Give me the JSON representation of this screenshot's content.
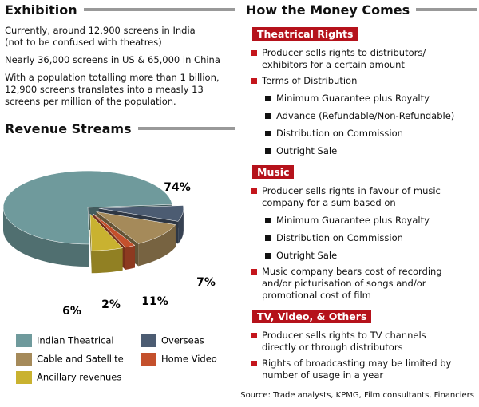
{
  "exhibition": {
    "title": "Exhibition",
    "paragraphs": [
      [
        "Currently, around 12,900 screens in India",
        "(not to be confused with theatres)"
      ],
      [
        "Nearly 36,000 screens in US & 65,000 in China"
      ],
      [
        "With a population totalling more than 1 billion,",
        "12,900 screens translates into a measly 13",
        "screens per million of the population."
      ]
    ]
  },
  "chart_data": {
    "type": "pie",
    "title": "Revenue Streams",
    "categories": [
      "Indian Theatrical",
      "Overseas",
      "Cable and Satellite",
      "Home Video",
      "Ancillary revenues"
    ],
    "values": [
      74,
      7,
      11,
      2,
      6
    ],
    "value_labels": [
      "74%",
      "7%",
      "11%",
      "2%",
      "6%"
    ],
    "colors": [
      "#6f9a9c",
      "#4c5c72",
      "#a58a5a",
      "#c4502c",
      "#c9b230"
    ]
  },
  "money": {
    "title": "How the Money Comes",
    "sections": [
      {
        "heading": "Theatrical Rights",
        "items": [
          {
            "lines": [
              "Producer sells rights to distributors/",
              "exhibitors for a certain amount"
            ]
          },
          {
            "lines": [
              "Terms of Distribution"
            ],
            "sub": [
              "Minimum Guarantee plus Royalty",
              "Advance (Refundable/Non-Refundable)",
              "Distribution on Commission",
              "Outright Sale"
            ]
          }
        ]
      },
      {
        "heading": "Music",
        "items": [
          {
            "lines": [
              "Producer sells rights in favour of music",
              "company for a sum based on"
            ],
            "sub": [
              "Minimum Guarantee plus Royalty",
              "Distribution on Commission",
              "Outright Sale"
            ]
          },
          {
            "lines": [
              "Music company bears cost of recording",
              "and/or picturisation of songs and/or",
              "promotional cost of film"
            ]
          }
        ]
      },
      {
        "heading": "TV, Video, & Others",
        "items": [
          {
            "lines": [
              "Producer sells rights to TV channels",
              "directly or through distributors"
            ]
          },
          {
            "lines": [
              "Rights of broadcasting may be limited by",
              "number of usage in a year"
            ]
          }
        ]
      }
    ]
  },
  "source": "Source: Trade analysts, KPMG, Film consultants, Financiers"
}
